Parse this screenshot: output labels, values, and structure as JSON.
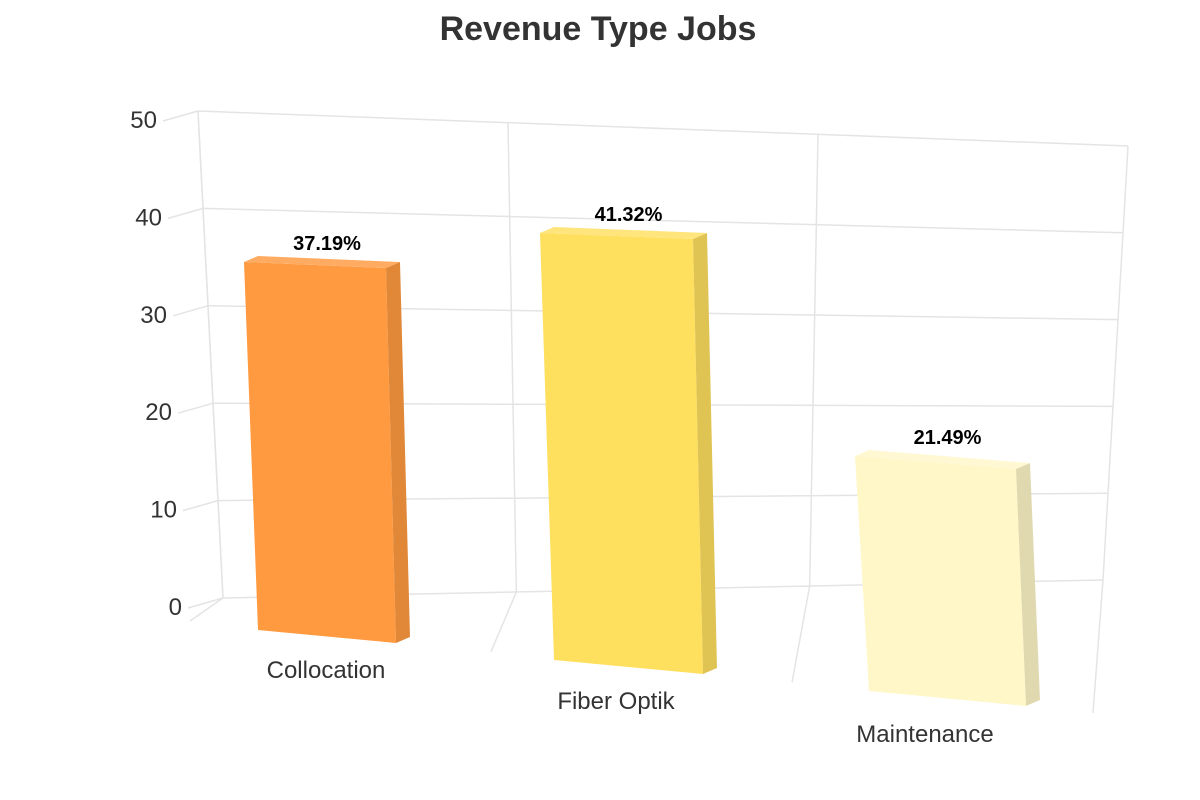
{
  "chart_data": {
    "type": "bar",
    "title": "Revenue Type Jobs",
    "xlabel": "",
    "ylabel": "",
    "ylim": [
      0,
      50
    ],
    "yticks": [
      0,
      10,
      20,
      30,
      40,
      50
    ],
    "grid": true,
    "three_d": true,
    "categories": [
      "Collocation",
      "Fiber Optik",
      "Maintenance"
    ],
    "values": [
      37.19,
      41.32,
      21.49
    ],
    "data_labels": [
      "37.19%",
      "41.32%",
      "21.49%"
    ],
    "colors": [
      "#ff9a40",
      "#ffdf5e",
      "#fff7c8"
    ]
  }
}
